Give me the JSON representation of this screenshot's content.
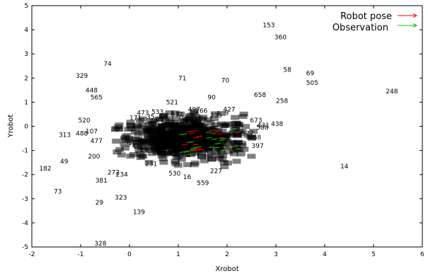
{
  "chart_data": {
    "type": "scatter",
    "xlabel": "Xrobot",
    "ylabel": "Yrobot",
    "xlim": [
      -2,
      6
    ],
    "ylim": [
      -5,
      5
    ],
    "x_ticks": [
      -2,
      -1,
      0,
      1,
      2,
      3,
      4,
      5,
      6
    ],
    "y_ticks": [
      -5,
      -4,
      -3,
      -2,
      -1,
      0,
      1,
      2,
      3,
      4,
      5
    ],
    "grid": false,
    "legend_position": "top-right",
    "legend": [
      {
        "label": "Robot pose",
        "color": "#ff0000"
      },
      {
        "label": "Observation",
        "color": "#00cc00"
      }
    ],
    "labeled_points": [
      {
        "label": "153",
        "x": 2.73,
        "y": 4.2
      },
      {
        "label": "360",
        "x": 2.97,
        "y": 3.7
      },
      {
        "label": "74",
        "x": -0.53,
        "y": 2.6
      },
      {
        "label": "58",
        "x": 3.15,
        "y": 2.35
      },
      {
        "label": "69",
        "x": 3.62,
        "y": 2.2
      },
      {
        "label": "329",
        "x": -1.1,
        "y": 2.1
      },
      {
        "label": "71",
        "x": 1.0,
        "y": 2.0
      },
      {
        "label": "70",
        "x": 1.88,
        "y": 1.9
      },
      {
        "label": "505",
        "x": 3.62,
        "y": 1.8
      },
      {
        "label": "448",
        "x": -0.9,
        "y": 1.5
      },
      {
        "label": "248",
        "x": 5.25,
        "y": 1.45
      },
      {
        "label": "565",
        "x": -0.8,
        "y": 1.2
      },
      {
        "label": "658",
        "x": 2.55,
        "y": 1.3
      },
      {
        "label": "90",
        "x": 1.6,
        "y": 1.2
      },
      {
        "label": "258",
        "x": 3.0,
        "y": 1.05
      },
      {
        "label": "521",
        "x": 0.75,
        "y": 1.0
      },
      {
        "label": "497",
        "x": 1.2,
        "y": 0.7
      },
      {
        "label": "427",
        "x": 1.92,
        "y": 0.7
      },
      {
        "label": "266",
        "x": 1.35,
        "y": 0.65
      },
      {
        "label": "473",
        "x": 0.15,
        "y": 0.55
      },
      {
        "label": "533",
        "x": 0.45,
        "y": 0.6
      },
      {
        "label": "632",
        "x": 0.85,
        "y": 0.5
      },
      {
        "label": "235",
        "x": 1.65,
        "y": 0.45
      },
      {
        "label": "9",
        "x": 1.95,
        "y": 0.55
      },
      {
        "label": "171",
        "x": 0.0,
        "y": 0.35
      },
      {
        "label": "35",
        "x": 0.35,
        "y": 0.4
      },
      {
        "label": "156",
        "x": 1.05,
        "y": 0.35
      },
      {
        "label": "673",
        "x": 2.47,
        "y": 0.25
      },
      {
        "label": "520",
        "x": -1.05,
        "y": 0.25
      },
      {
        "label": "152",
        "x": 2.05,
        "y": 0.1
      },
      {
        "label": "438",
        "x": 2.9,
        "y": 0.1
      },
      {
        "label": "431",
        "x": 2.62,
        "y": 0.05
      },
      {
        "label": "588",
        "x": 2.6,
        "y": -0.05
      },
      {
        "label": "386",
        "x": -0.38,
        "y": -0.1
      },
      {
        "label": "107",
        "x": -0.9,
        "y": -0.2
      },
      {
        "label": "313",
        "x": -1.45,
        "y": -0.35
      },
      {
        "label": "488",
        "x": -1.1,
        "y": -0.3
      },
      {
        "label": "577",
        "x": 2.3,
        "y": -0.3
      },
      {
        "label": "268",
        "x": 2.45,
        "y": -0.45
      },
      {
        "label": "477",
        "x": -0.8,
        "y": -0.6
      },
      {
        "label": "91",
        "x": -0.05,
        "y": -0.75
      },
      {
        "label": "397",
        "x": 2.5,
        "y": -0.8
      },
      {
        "label": "200",
        "x": -0.85,
        "y": -1.25
      },
      {
        "label": "49",
        "x": -1.42,
        "y": -1.45
      },
      {
        "label": "231",
        "x": 0.32,
        "y": -1.55
      },
      {
        "label": "182",
        "x": -1.85,
        "y": -1.75
      },
      {
        "label": "14",
        "x": 4.32,
        "y": -1.65
      },
      {
        "label": "272",
        "x": -0.45,
        "y": -1.9
      },
      {
        "label": "234",
        "x": -0.28,
        "y": -2.0
      },
      {
        "label": "530",
        "x": 0.8,
        "y": -1.95
      },
      {
        "label": "16",
        "x": 1.1,
        "y": -2.1
      },
      {
        "label": "227",
        "x": 1.65,
        "y": -1.85
      },
      {
        "label": "381",
        "x": -0.7,
        "y": -2.25
      },
      {
        "label": "559",
        "x": 1.38,
        "y": -2.35
      },
      {
        "label": "73",
        "x": -1.55,
        "y": -2.7
      },
      {
        "label": "323",
        "x": -0.3,
        "y": -2.95
      },
      {
        "label": "29",
        "x": -0.7,
        "y": -3.15
      },
      {
        "label": "139",
        "x": 0.07,
        "y": -3.55
      },
      {
        "label": "328",
        "x": -0.72,
        "y": -4.85
      }
    ]
  }
}
